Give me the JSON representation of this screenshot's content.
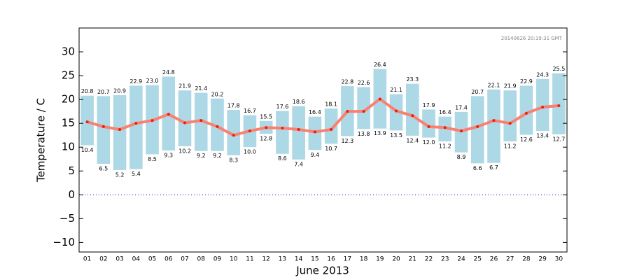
{
  "chart_data": {
    "type": "range-bar",
    "xlabel": "June 2013",
    "ylabel": "Temperature / C",
    "annotation": "20140626 20:19:31 GMT",
    "categories": [
      "01",
      "02",
      "03",
      "04",
      "05",
      "06",
      "07",
      "08",
      "09",
      "10",
      "11",
      "12",
      "13",
      "14",
      "15",
      "16",
      "17",
      "18",
      "19",
      "20",
      "21",
      "22",
      "23",
      "24",
      "25",
      "26",
      "27",
      "28",
      "29",
      "30"
    ],
    "bars": {
      "color": "#add8e6",
      "high": [
        20.8,
        20.7,
        20.9,
        22.9,
        23.0,
        24.8,
        21.9,
        21.4,
        20.2,
        17.8,
        16.7,
        15.5,
        17.6,
        18.6,
        16.4,
        18.1,
        22.8,
        22.6,
        26.4,
        21.1,
        23.3,
        17.9,
        16.4,
        17.4,
        20.7,
        22.1,
        21.9,
        22.9,
        24.3,
        25.5
      ],
      "high_labels": [
        "20.8",
        "20.7",
        "20.9",
        "22.9",
        "23.0",
        "24.8",
        "21.9",
        "21.4",
        "20.2",
        "17.8",
        "16.7",
        "15.5",
        "17.6",
        "18.6",
        "16.4",
        "18.1",
        "22.8",
        "22.6",
        "26.4",
        "21.1",
        "23.3",
        "17.9",
        "16.4",
        "17.4",
        "20.7",
        "22.1",
        "21.9",
        "22.9",
        "24.3",
        "25.5"
      ],
      "low": [
        10.4,
        6.5,
        5.2,
        5.4,
        8.5,
        9.3,
        10.2,
        9.2,
        9.2,
        8.3,
        10.0,
        12.8,
        8.6,
        7.4,
        9.4,
        10.7,
        12.3,
        13.8,
        13.9,
        13.5,
        12.4,
        12.0,
        11.2,
        8.9,
        6.6,
        6.7,
        11.2,
        12.6,
        13.4,
        12.7
      ],
      "low_labels": [
        "10.4",
        "6.5",
        "5.2",
        "5.4",
        "8.5",
        "9.3",
        "10.2",
        "9.2",
        "9.2",
        "8.3",
        "10.0",
        "12.8",
        "8.6",
        "7.4",
        "9.4",
        "10.7",
        "12.3",
        "13.8",
        "13.9",
        "13.5",
        "12.4",
        "12.0",
        "11.2",
        "8.9",
        "6.6",
        "6.7",
        "11.2",
        "12.6",
        "13.4",
        "12.7"
      ]
    },
    "line": {
      "color": "#fa8072",
      "marker_color": "#e8200c",
      "values": [
        15.3,
        14.3,
        13.7,
        15.0,
        15.6,
        16.9,
        15.1,
        15.6,
        14.3,
        12.5,
        13.4,
        14.1,
        14.0,
        13.7,
        13.2,
        13.7,
        17.5,
        17.5,
        20.1,
        17.6,
        16.6,
        14.3,
        14.1,
        13.4,
        14.3,
        15.6,
        15.0,
        17.1,
        18.4,
        18.7
      ]
    },
    "hline": {
      "value": 0,
      "color": "#0000ff"
    },
    "ylim": [
      -12,
      35
    ],
    "yticks": [
      {
        "value": -10,
        "label": "−10"
      },
      {
        "value": -5,
        "label": "−5"
      },
      0,
      5,
      10,
      15,
      20,
      25,
      30
    ]
  }
}
